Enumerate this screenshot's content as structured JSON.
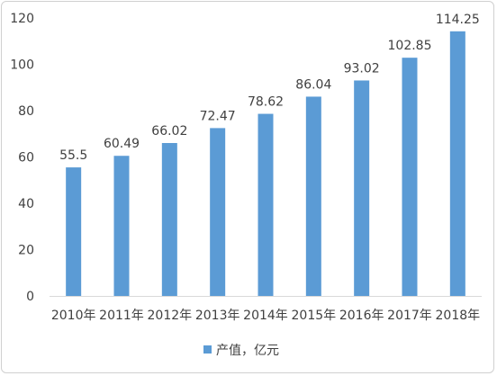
{
  "chart_data": {
    "type": "bar",
    "categories": [
      "2010年",
      "2011年",
      "2012年",
      "2013年",
      "2014年",
      "2015年",
      "2016年",
      "2017年",
      "2018年"
    ],
    "series": [
      {
        "name": "产值，亿元",
        "values": [
          55.5,
          60.49,
          66.02,
          72.47,
          78.62,
          86.04,
          93.02,
          102.85,
          114.25
        ],
        "value_labels": [
          "55.5",
          "60.49",
          "66.02",
          "72.47",
          "78.62",
          "86.04",
          "93.02",
          "102.85",
          "114.25"
        ],
        "color": "#5b9bd5"
      }
    ],
    "yticks": [
      "0",
      "20",
      "40",
      "60",
      "80",
      "100",
      "120"
    ],
    "ylim": [
      0,
      120
    ],
    "grid": false,
    "legend": "bottom"
  }
}
